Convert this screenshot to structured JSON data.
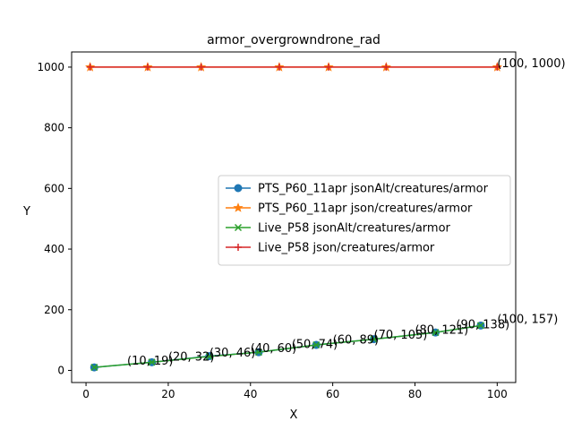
{
  "chart_data": {
    "type": "line",
    "title": "armor_overgrowndrone_rad",
    "xlabel": "X",
    "ylabel": "Y",
    "xlim": [
      -3.5,
      104.5
    ],
    "ylim": [
      -40,
      1050
    ],
    "xticks": [
      0,
      20,
      40,
      60,
      80,
      100
    ],
    "yticks": [
      0,
      200,
      400,
      600,
      800,
      1000
    ],
    "grid": false,
    "legend_position": "center-right",
    "series": [
      {
        "name": "PTS_P60_11apr jsonAlt/creatures/armor",
        "color": "#1f77b4",
        "marker": "circle",
        "x": [
          2,
          16,
          30,
          42,
          56,
          70,
          85,
          96
        ],
        "y": [
          10,
          27,
          47,
          60,
          84,
          103,
          125,
          148
        ]
      },
      {
        "name": "PTS_P60_11apr json/creatures/armor",
        "color": "#ff7f0e",
        "marker": "star",
        "x": [
          1,
          15,
          28,
          47,
          59,
          73,
          100
        ],
        "y": [
          1000,
          1000,
          1000,
          1000,
          1000,
          1000,
          1000
        ]
      },
      {
        "name": "Live_P58 jsonAlt/creatures/armor",
        "color": "#2ca02c",
        "marker": "x",
        "x": [
          2,
          16,
          30,
          42,
          56,
          70,
          85,
          96
        ],
        "y": [
          10,
          27,
          46,
          60,
          84,
          103,
          125,
          148
        ]
      },
      {
        "name": "Live_P58 json/creatures/armor",
        "color": "#d62728",
        "marker": "plus",
        "x": [
          1,
          15,
          28,
          47,
          59,
          73,
          100
        ],
        "y": [
          1000,
          1000,
          1000,
          1000,
          1000,
          1000,
          1000
        ]
      }
    ],
    "annotations": [
      {
        "text": "(10, 19)",
        "x": 10,
        "y": 19
      },
      {
        "text": "(20, 32)",
        "x": 20,
        "y": 32
      },
      {
        "text": "(30, 46)",
        "x": 30,
        "y": 46
      },
      {
        "text": "(40, 60)",
        "x": 40,
        "y": 60
      },
      {
        "text": "(50, 74)",
        "x": 50,
        "y": 74
      },
      {
        "text": "(60, 89)",
        "x": 60,
        "y": 89
      },
      {
        "text": "(70, 105)",
        "x": 70,
        "y": 105
      },
      {
        "text": "(80, 121)",
        "x": 80,
        "y": 121
      },
      {
        "text": "(90, 138)",
        "x": 90,
        "y": 138
      },
      {
        "text": "(100, 157)",
        "x": 100,
        "y": 157
      },
      {
        "text": "(100, 1000)",
        "x": 100,
        "y": 1000
      }
    ]
  }
}
